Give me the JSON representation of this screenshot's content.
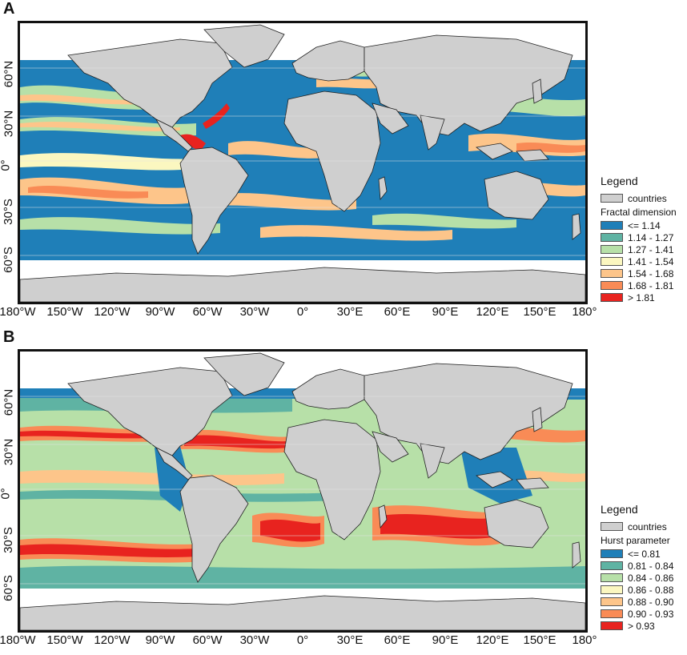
{
  "panels": [
    {
      "letter": "A",
      "lat_ticks": [
        "60°N",
        "30°N",
        "0°",
        "30°S",
        "60°S"
      ],
      "lon_ticks": [
        "180°W",
        "150°W",
        "120°W",
        "90°W",
        "60°W",
        "30°W",
        "0°",
        "30°E",
        "60°E",
        "90°E",
        "120°E",
        "150°E",
        "180°"
      ],
      "legend": {
        "title": "Legend",
        "countries_label": "countries",
        "countries_color": "#cfcfcf",
        "variable_label": "Fractal dimension",
        "classes": [
          {
            "label": "<= 1.14",
            "color": "#1f7fb8"
          },
          {
            "label": "1.14 - 1.27",
            "color": "#5fb3a3"
          },
          {
            "label": "1.27 - 1.41",
            "color": "#b7e0a8"
          },
          {
            "label": "1.41 - 1.54",
            "color": "#fbf7c0"
          },
          {
            "label": "1.54 - 1.68",
            "color": "#fdc58a"
          },
          {
            "label": "1.68 - 1.81",
            "color": "#f98b56"
          },
          {
            "label": "> 1.81",
            "color": "#e8231f"
          }
        ]
      }
    },
    {
      "letter": "B",
      "lat_ticks": [
        "60°N",
        "30°N",
        "0°",
        "30°S",
        "60°S"
      ],
      "lon_ticks": [
        "180°W",
        "150°W",
        "120°W",
        "90°W",
        "60°W",
        "30°W",
        "0°",
        "30°E",
        "60°E",
        "90°E",
        "120°E",
        "150°E",
        "180°"
      ],
      "legend": {
        "title": "Legend",
        "countries_label": "countries",
        "countries_color": "#cfcfcf",
        "variable_label": "Hurst parameter",
        "classes": [
          {
            "label": "<= 0.81",
            "color": "#1f7fb8"
          },
          {
            "label": "0.81 - 0.84",
            "color": "#5fb3a3"
          },
          {
            "label": "0.84 - 0.86",
            "color": "#b7e0a8"
          },
          {
            "label": "0.86 - 0.88",
            "color": "#fbf7c0"
          },
          {
            "label": "0.88 - 0.90",
            "color": "#fdc58a"
          },
          {
            "label": "0.90 - 0.93",
            "color": "#f98b56"
          },
          {
            "label": "> 0.93",
            "color": "#e8231f"
          }
        ]
      }
    }
  ]
}
